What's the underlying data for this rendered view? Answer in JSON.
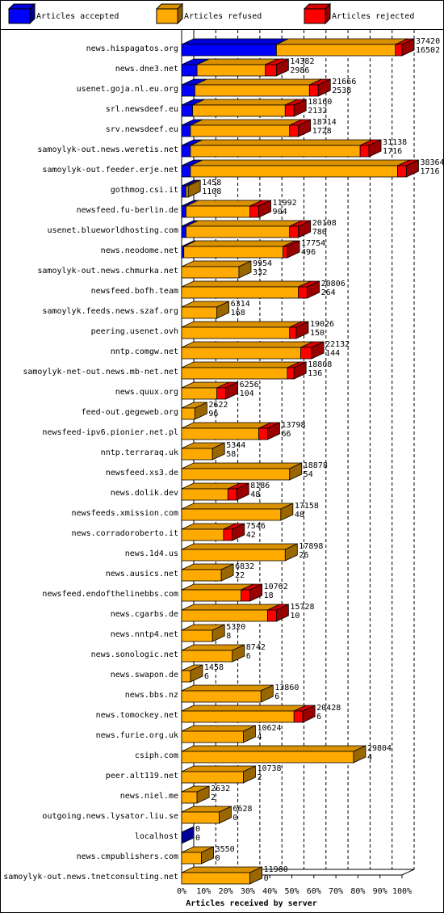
{
  "chart_data": {
    "type": "bar",
    "xlabel": "Articles received by server",
    "legend": [
      "Articles accepted",
      "Articles refused",
      "Articles rejected"
    ],
    "colors": {
      "accepted": "#0000ff",
      "refused": "#ffaa00",
      "rejected": "#ff0000"
    },
    "xticks": [
      "0%",
      "10%",
      "20%",
      "30%",
      "40%",
      "50%",
      "60%",
      "70%",
      "80%",
      "90%",
      "100%"
    ],
    "xlim": [
      0,
      100
    ],
    "rows": [
      {
        "server": "news.hispagatos.org",
        "total": "37420",
        "rejected": "16502",
        "accepted_pct": 43,
        "refused_pct": 54,
        "rejected_pct": 3
      },
      {
        "server": "news.dne3.net",
        "total": "14382",
        "rejected": "2986",
        "accepted_pct": 7,
        "refused_pct": 31,
        "rejected_pct": 5
      },
      {
        "server": "usenet.goja.nl.eu.org",
        "total": "21666",
        "rejected": "2538",
        "accepted_pct": 6,
        "refused_pct": 52,
        "rejected_pct": 4
      },
      {
        "server": "srl.newsdeef.eu",
        "total": "18160",
        "rejected": "2132",
        "accepted_pct": 5,
        "refused_pct": 42,
        "rejected_pct": 4
      },
      {
        "server": "srv.newsdeef.eu",
        "total": "18714",
        "rejected": "1728",
        "accepted_pct": 4,
        "refused_pct": 45,
        "rejected_pct": 4
      },
      {
        "server": "samoylyk-out.news.weretis.net",
        "total": "31138",
        "rejected": "1716",
        "accepted_pct": 4,
        "refused_pct": 77,
        "rejected_pct": 4
      },
      {
        "server": "samoylyk-out.feeder.erje.net",
        "total": "38364",
        "rejected": "1716",
        "accepted_pct": 4,
        "refused_pct": 94,
        "rejected_pct": 4
      },
      {
        "server": "gothmog.csi.it",
        "total": "1458",
        "rejected": "1108",
        "accepted_pct": 2,
        "refused_pct": 1,
        "rejected_pct": 0
      },
      {
        "server": "newsfeed.fu-berlin.de",
        "total": "11992",
        "rejected": "904",
        "accepted_pct": 2,
        "refused_pct": 29,
        "rejected_pct": 4
      },
      {
        "server": "usenet.blueworldhosting.com",
        "total": "20108",
        "rejected": "780",
        "accepted_pct": 2,
        "refused_pct": 47,
        "rejected_pct": 4
      },
      {
        "server": "news.neodome.net",
        "total": "17754",
        "rejected": "496",
        "accepted_pct": 1,
        "refused_pct": 45,
        "rejected_pct": 2
      },
      {
        "server": "samoylyk-out.news.chmurka.net",
        "total": "9954",
        "rejected": "332",
        "accepted_pct": 0,
        "refused_pct": 26,
        "rejected_pct": 0
      },
      {
        "server": "newsfeed.bofh.team",
        "total": "20806",
        "rejected": "264",
        "accepted_pct": 0,
        "refused_pct": 53,
        "rejected_pct": 4
      },
      {
        "server": "samoylyk.feeds.news.szaf.org",
        "total": "6314",
        "rejected": "168",
        "accepted_pct": 0,
        "refused_pct": 16,
        "rejected_pct": 0
      },
      {
        "server": "peering.usenet.ovh",
        "total": "19026",
        "rejected": "150",
        "accepted_pct": 0,
        "refused_pct": 49,
        "rejected_pct": 3
      },
      {
        "server": "nntp.comgw.net",
        "total": "22132",
        "rejected": "144",
        "accepted_pct": 0,
        "refused_pct": 54,
        "rejected_pct": 5
      },
      {
        "server": "samoylyk-net-out.news.mb-net.net",
        "total": "18808",
        "rejected": "136",
        "accepted_pct": 0,
        "refused_pct": 48,
        "rejected_pct": 3
      },
      {
        "server": "news.quux.org",
        "total": "6256",
        "rejected": "104",
        "accepted_pct": 0,
        "refused_pct": 16,
        "rejected_pct": 4
      },
      {
        "server": "feed-out.gegeweb.org",
        "total": "2622",
        "rejected": "96",
        "accepted_pct": 0,
        "refused_pct": 6,
        "rejected_pct": 0
      },
      {
        "server": "newsfeed-ipv6.pionier.net.pl",
        "total": "13798",
        "rejected": "66",
        "accepted_pct": 0,
        "refused_pct": 35,
        "rejected_pct": 4
      },
      {
        "server": "nntp.terraraq.uk",
        "total": "5344",
        "rejected": "58",
        "accepted_pct": 0,
        "refused_pct": 14,
        "rejected_pct": 0
      },
      {
        "server": "newsfeed.xs3.de",
        "total": "18878",
        "rejected": "54",
        "accepted_pct": 0,
        "refused_pct": 49,
        "rejected_pct": 0
      },
      {
        "server": "news.dolik.dev",
        "total": "8186",
        "rejected": "48",
        "accepted_pct": 0,
        "refused_pct": 21,
        "rejected_pct": 4
      },
      {
        "server": "newsfeeds.xmission.com",
        "total": "17158",
        "rejected": "48",
        "accepted_pct": 0,
        "refused_pct": 45,
        "rejected_pct": 0
      },
      {
        "server": "news.corradoroberto.it",
        "total": "7546",
        "rejected": "42",
        "accepted_pct": 0,
        "refused_pct": 19,
        "rejected_pct": 4
      },
      {
        "server": "news.1d4.us",
        "total": "17898",
        "rejected": "26",
        "accepted_pct": 0,
        "refused_pct": 47,
        "rejected_pct": 0
      },
      {
        "server": "news.ausics.net",
        "total": "6832",
        "rejected": "22",
        "accepted_pct": 0,
        "refused_pct": 18,
        "rejected_pct": 0
      },
      {
        "server": "newsfeed.endofthelinebbs.com",
        "total": "10762",
        "rejected": "18",
        "accepted_pct": 0,
        "refused_pct": 27,
        "rejected_pct": 4
      },
      {
        "server": "news.cgarbs.de",
        "total": "15728",
        "rejected": "10",
        "accepted_pct": 0,
        "refused_pct": 39,
        "rejected_pct": 4
      },
      {
        "server": "news.nntp4.net",
        "total": "5320",
        "rejected": "8",
        "accepted_pct": 0,
        "refused_pct": 14,
        "rejected_pct": 0
      },
      {
        "server": "news.sonologic.net",
        "total": "8742",
        "rejected": "6",
        "accepted_pct": 0,
        "refused_pct": 23,
        "rejected_pct": 0
      },
      {
        "server": "news.swapon.de",
        "total": "1458",
        "rejected": "6",
        "accepted_pct": 0,
        "refused_pct": 4,
        "rejected_pct": 0
      },
      {
        "server": "news.bbs.nz",
        "total": "13860",
        "rejected": "6",
        "accepted_pct": 0,
        "refused_pct": 36,
        "rejected_pct": 0
      },
      {
        "server": "news.tomockey.net",
        "total": "20428",
        "rejected": "6",
        "accepted_pct": 0,
        "refused_pct": 51,
        "rejected_pct": 4
      },
      {
        "server": "news.furie.org.uk",
        "total": "10624",
        "rejected": "4",
        "accepted_pct": 0,
        "refused_pct": 28,
        "rejected_pct": 0
      },
      {
        "server": "csiph.com",
        "total": "29804",
        "rejected": "4",
        "accepted_pct": 0,
        "refused_pct": 78,
        "rejected_pct": 0
      },
      {
        "server": "peer.alt119.net",
        "total": "10738",
        "rejected": "2",
        "accepted_pct": 0,
        "refused_pct": 28,
        "rejected_pct": 0
      },
      {
        "server": "news.niel.me",
        "total": "2632",
        "rejected": "2",
        "accepted_pct": 0,
        "refused_pct": 7,
        "rejected_pct": 0
      },
      {
        "server": "outgoing.news.lysator.liu.se",
        "total": "6628",
        "rejected": "0",
        "accepted_pct": 0,
        "refused_pct": 17,
        "rejected_pct": 0
      },
      {
        "server": "localhost",
        "total": "0",
        "rejected": "0",
        "accepted_pct": 0,
        "refused_pct": 0,
        "rejected_pct": 0
      },
      {
        "server": "news.cmpublishers.com",
        "total": "3550",
        "rejected": "0",
        "accepted_pct": 0,
        "refused_pct": 9,
        "rejected_pct": 0
      },
      {
        "server": "samoylyk-out.news.tnetconsulting.net",
        "total": "11960",
        "rejected": "0",
        "accepted_pct": 0,
        "refused_pct": 31,
        "rejected_pct": 0
      }
    ]
  }
}
